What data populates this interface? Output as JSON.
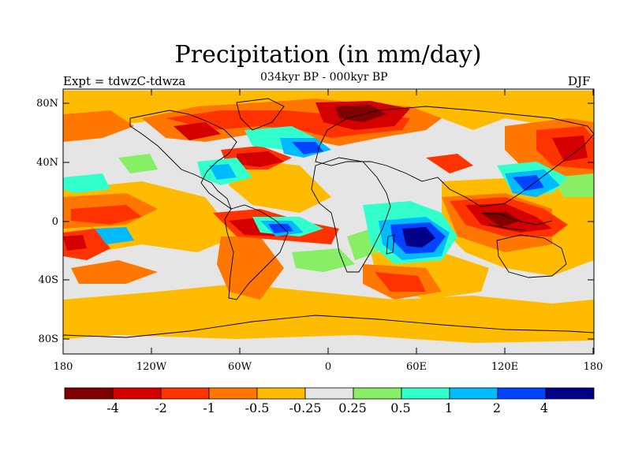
{
  "figure": {
    "title": "Precipitation (in mm/day)",
    "subtitle": "034kyr BP - 000kyr BP",
    "left_label": "Expt = tdwzC-tdwza",
    "right_label": "DJF"
  },
  "axes": {
    "lat_ticks": [
      "80N",
      "40N",
      "0",
      "40S",
      "80S"
    ],
    "lon_ticks": [
      "180",
      "120W",
      "60W",
      "0",
      "60E",
      "120E",
      "180"
    ]
  },
  "colorbar": {
    "colors": [
      "#800000",
      "#d40000",
      "#ff3300",
      "#ff7700",
      "#ffbb00",
      "#e5e5e5",
      "#88ee66",
      "#33ffcc",
      "#00bbff",
      "#0044ff",
      "#000088"
    ],
    "labels": [
      "-4",
      "-2",
      "-1",
      "-0.5",
      "-0.25",
      "0.25",
      "0.5",
      "1",
      "2",
      "4"
    ]
  },
  "legend_colors": {
    "background": "#e5e5e5",
    "land_outline": "#000000"
  }
}
